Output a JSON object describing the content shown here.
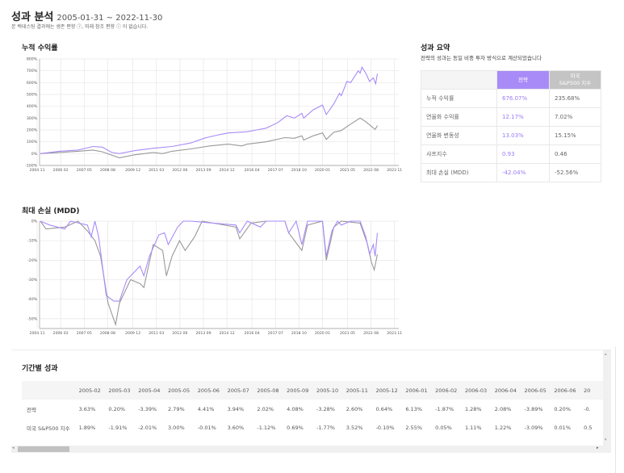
{
  "header": {
    "title": "성과 분석",
    "range": "2005-01-31 ~ 2022-11-30",
    "note": "본 백테스팅 결과에는 생존 편향 ⓘ, 미래 참조 편향 ⓘ 이 없습니다."
  },
  "colors": {
    "strategy": "#a98bf8",
    "benchmark": "#999999",
    "strategy_text": "#9b7bf5",
    "benchmark_header": "#c4c4c4"
  },
  "chart_data": [
    {
      "type": "line",
      "title": "누적 수익률",
      "ylim": [
        -100,
        800
      ],
      "yticks": [
        "800%",
        "700%",
        "600%",
        "500%",
        "400%",
        "300%",
        "200%",
        "100%",
        "0%",
        "-100%"
      ],
      "ytick_values": [
        800,
        700,
        600,
        500,
        400,
        300,
        200,
        100,
        0,
        -100
      ],
      "xticks": [
        "2004 11",
        "2006 02",
        "2007 05",
        "2008 08",
        "2009 12",
        "2011 03",
        "2012 06",
        "2013 09",
        "2014 12",
        "2016 04",
        "2017 07",
        "2018 10",
        "2020 01",
        "2021 05",
        "2022 08",
        "2023 11"
      ],
      "xtick_values": [
        2004.83,
        2006.08,
        2007.33,
        2008.58,
        2009.92,
        2011.17,
        2012.42,
        2013.67,
        2014.92,
        2016.25,
        2017.5,
        2018.75,
        2020.0,
        2021.33,
        2022.58,
        2023.83
      ],
      "xlim": [
        2004.7,
        2024.0
      ],
      "grid": true,
      "series": [
        {
          "key": "strategy",
          "x": [
            2005,
            2006,
            2007,
            2007.8,
            2008.3,
            2008.8,
            2009.2,
            2010,
            2011,
            2012,
            2013,
            2013.7,
            2014.5,
            2015,
            2015.5,
            2016,
            2016.5,
            2017,
            2017.6,
            2018.1,
            2018.5,
            2018.9,
            2019.0,
            2019.5,
            2020.0,
            2020.2,
            2020.6,
            2020.9,
            2021.0,
            2021.3,
            2021.5,
            2021.9,
            2022.0,
            2022.1,
            2022.3,
            2022.5,
            2022.7,
            2022.83,
            2022.92
          ],
          "y": [
            0,
            20,
            30,
            60,
            55,
            10,
            0,
            25,
            45,
            60,
            90,
            130,
            160,
            175,
            180,
            185,
            200,
            215,
            260,
            320,
            300,
            340,
            300,
            370,
            410,
            330,
            420,
            510,
            490,
            610,
            600,
            700,
            680,
            730,
            680,
            610,
            640,
            590,
            676
          ]
        },
        {
          "key": "benchmark",
          "x": [
            2005,
            2006,
            2007,
            2007.8,
            2008.3,
            2009.2,
            2010,
            2011,
            2011.5,
            2012,
            2013,
            2014,
            2015,
            2015.7,
            2016,
            2017,
            2018,
            2018.5,
            2018.9,
            2019.0,
            2019.5,
            2020.0,
            2020.2,
            2020.6,
            2021,
            2021.5,
            2022.0,
            2022.3,
            2022.6,
            2022.8,
            2022.92
          ],
          "y": [
            0,
            10,
            20,
            30,
            15,
            -35,
            -10,
            10,
            0,
            20,
            40,
            65,
            80,
            65,
            80,
            100,
            135,
            130,
            150,
            115,
            150,
            175,
            120,
            180,
            195,
            250,
            300,
            270,
            230,
            205,
            236
          ]
        }
      ]
    },
    {
      "type": "line",
      "title": "최대 손실 (MDD)",
      "ylim": [
        -55,
        0
      ],
      "yticks": [
        "0%",
        "-10%",
        "-20%",
        "-30%",
        "-40%",
        "-50%"
      ],
      "ytick_values": [
        0,
        -10,
        -20,
        -30,
        -40,
        -50
      ],
      "xticks": [
        "2004 11",
        "2006 02",
        "2007 05",
        "2008 08",
        "2009 12",
        "2011 03",
        "2012 06",
        "2013 09",
        "2014 12",
        "2016 04",
        "2017 07",
        "2018 10",
        "2020 01",
        "2021 05",
        "2022 08",
        "2023 11"
      ],
      "xtick_values": [
        2004.83,
        2006.08,
        2007.33,
        2008.58,
        2009.92,
        2011.17,
        2012.42,
        2013.67,
        2014.92,
        2016.25,
        2017.5,
        2018.75,
        2020.0,
        2021.33,
        2022.58,
        2023.83
      ],
      "xlim": [
        2004.7,
        2024.0
      ],
      "grid": true,
      "series": [
        {
          "key": "strategy",
          "x": [
            2005,
            2005.5,
            2006.3,
            2006.6,
            2007.5,
            2007.7,
            2007.9,
            2008.1,
            2008.5,
            2008.9,
            2009.2,
            2009.6,
            2010,
            2010.3,
            2010.5,
            2010.8,
            2011.3,
            2011.6,
            2011.8,
            2012.3,
            2012.6,
            2013,
            2015.4,
            2015.6,
            2016,
            2016.7,
            2017,
            2018.0,
            2018.2,
            2018.6,
            2018.9,
            2019.2,
            2020.0,
            2020.2,
            2020.5,
            2020.8,
            2021.0,
            2021.5,
            2022.0,
            2022.3,
            2022.5,
            2022.7,
            2022.8,
            2022.92
          ],
          "y": [
            0,
            -2,
            -4,
            0,
            -2,
            -8,
            0,
            -8,
            -38,
            -41,
            -41,
            -30,
            -26,
            -23,
            -28,
            -18,
            -7,
            -6,
            -12,
            -3,
            0,
            0,
            -2,
            -6,
            0,
            -3,
            0,
            0,
            -6,
            0,
            -12,
            0,
            0,
            -18,
            -5,
            0,
            -2,
            0,
            0,
            -8,
            -17,
            -12,
            -18,
            -6
          ]
        },
        {
          "key": "benchmark",
          "x": [
            2005,
            2005.3,
            2006.3,
            2007,
            2007.5,
            2007.9,
            2008.2,
            2008.6,
            2009.0,
            2009.2,
            2009.8,
            2010.3,
            2010.5,
            2011,
            2011.5,
            2011.7,
            2012,
            2012.4,
            2012.7,
            2013.2,
            2013.6,
            2015.4,
            2015.6,
            2016.2,
            2017,
            2018,
            2018.2,
            2018.9,
            2019.2,
            2020.0,
            2020.2,
            2020.6,
            2021.0,
            2022.0,
            2022.4,
            2022.6,
            2022.75,
            2022.92
          ],
          "y": [
            0,
            -4,
            -3,
            0,
            -5,
            -10,
            -18,
            -42,
            -53,
            -42,
            -30,
            -32,
            -34,
            -12,
            -15,
            -28,
            -18,
            -10,
            -15,
            -8,
            0,
            -3,
            -9,
            -1,
            0,
            0,
            -6,
            -15,
            -2,
            0,
            -20,
            -3,
            0,
            -1,
            -12,
            -21,
            -25,
            -17
          ]
        }
      ]
    }
  ],
  "summary": {
    "title": "성과 요약",
    "subtitle": "전략의 성과는 동일 비중 투자 방식으로 계산되었습니다",
    "col_strategy": "전략",
    "col_benchmark_1": "미국",
    "col_benchmark_2": "S&P500 지수",
    "rows": [
      {
        "label": "누적 수익률",
        "strategy": "676.07%",
        "benchmark": "235.68%"
      },
      {
        "label": "연율화 수익률",
        "strategy": "12.17%",
        "benchmark": "7.02%"
      },
      {
        "label": "연율화 변동성",
        "strategy": "13.03%",
        "benchmark": "15.15%"
      },
      {
        "label": "샤프지수",
        "strategy": "0.93",
        "benchmark": "0.46"
      },
      {
        "label": "최대 손실 (MDD)",
        "strategy": "-42.04%",
        "benchmark": "-52.56%"
      }
    ]
  },
  "period": {
    "title": "기간별 성과",
    "row_strategy": "전략",
    "row_benchmark": "미국 S&P500 지수",
    "months": [
      "2005-02",
      "2005-03",
      "2005-04",
      "2005-05",
      "2005-06",
      "2005-07",
      "2005-08",
      "2005-09",
      "2005-10",
      "2005-11",
      "2005-12",
      "2006-01",
      "2006-02",
      "2006-03",
      "2006-04",
      "2006-05",
      "2006-06",
      "20"
    ],
    "strategy": [
      "3.63%",
      "0.20%",
      "-3.39%",
      "2.79%",
      "4.41%",
      "3.94%",
      "2.02%",
      "4.08%",
      "-3.28%",
      "2.60%",
      "0.64%",
      "6.13%",
      "-1.87%",
      "1.28%",
      "2.08%",
      "-3.89%",
      "0.20%",
      "-0."
    ],
    "benchmark": [
      "1.89%",
      "-1.91%",
      "-2.01%",
      "3.00%",
      "-0.01%",
      "3.60%",
      "-1.12%",
      "0.69%",
      "-1.77%",
      "3.52%",
      "-0.10%",
      "2.55%",
      "0.05%",
      "1.11%",
      "1.22%",
      "-3.09%",
      "0.01%",
      "0.5"
    ]
  }
}
